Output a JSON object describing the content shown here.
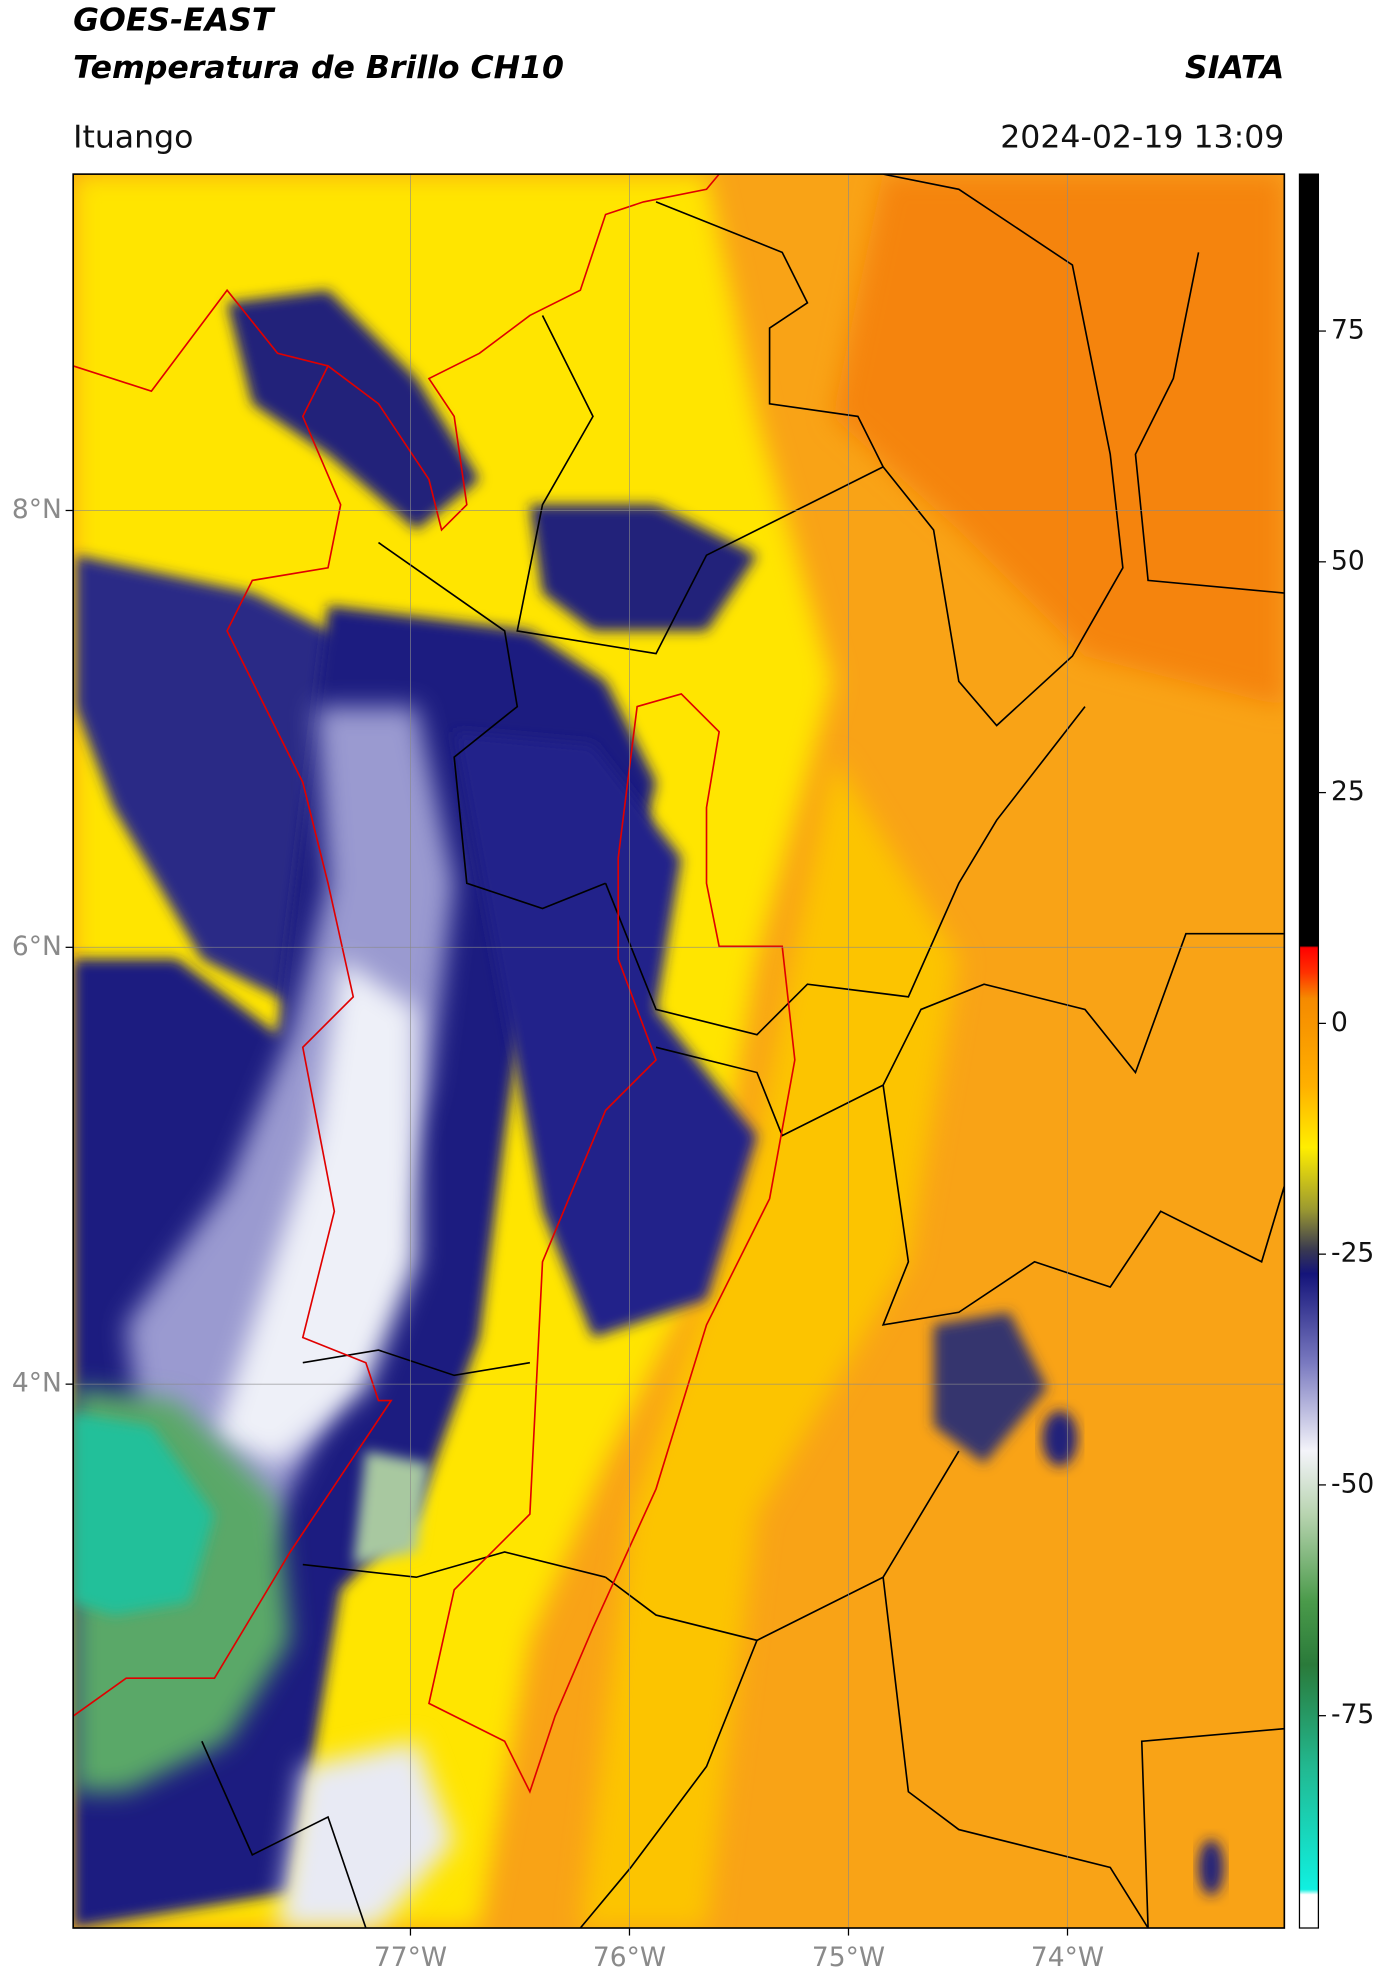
{
  "header": {
    "title": "GOES-EAST",
    "subtitle": "Temperatura de Brillo CH10",
    "agency": "SIATA",
    "location": "Ituango",
    "datetime": "2024-02-19 13:09"
  },
  "map": {
    "xlim": [
      -78.54,
      -73.01
    ],
    "ylim": [
      1.51,
      9.54
    ],
    "grid": true,
    "xticks": [
      {
        "value": -77,
        "label": "77°W"
      },
      {
        "value": -76,
        "label": "76°W"
      },
      {
        "value": -75,
        "label": "75°W"
      },
      {
        "value": -74,
        "label": "74°W"
      }
    ],
    "yticks": [
      {
        "value": 8,
        "label": "8°N"
      },
      {
        "value": 6,
        "label": "6°N"
      },
      {
        "value": 4,
        "label": "4°N"
      }
    ]
  },
  "colorbar": {
    "ylim": [
      -98,
      92
    ],
    "ticks": [
      75,
      50,
      25,
      0,
      -25,
      -50,
      -75
    ]
  }
}
